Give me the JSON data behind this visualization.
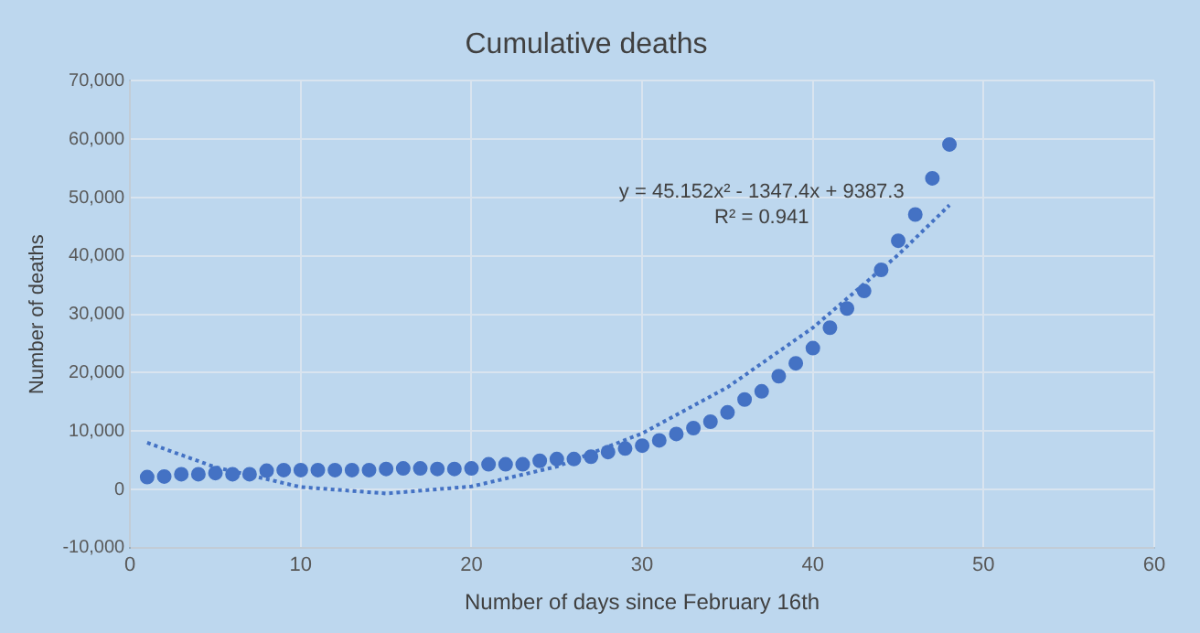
{
  "chart_data": {
    "type": "scatter",
    "title": "Cumulative deaths",
    "xlabel": "Number of days since February 16th",
    "ylabel": "Number of deaths",
    "xlim": [
      0,
      60
    ],
    "xticks": [
      0,
      10,
      20,
      30,
      40,
      50,
      60
    ],
    "ylim": [
      -10000,
      70000
    ],
    "yticks": [
      {
        "value": -10000,
        "label": "-10,000"
      },
      {
        "value": 0,
        "label": "0"
      },
      {
        "value": 10000,
        "label": "10,000"
      },
      {
        "value": 20000,
        "label": "20,000"
      },
      {
        "value": 30000,
        "label": "30,000"
      },
      {
        "value": 40000,
        "label": "40,000"
      },
      {
        "value": 50000,
        "label": "50,000"
      },
      {
        "value": 60000,
        "label": "60,000"
      },
      {
        "value": 70000,
        "label": "70,000"
      }
    ],
    "grid": true,
    "legend": false,
    "marker": "circle",
    "annotations": [
      "y = 45.152x² - 1347.4x + 9387.3",
      "R² = 0.941"
    ],
    "series": [
      {
        "color": "#4472c4",
        "x": [
          1,
          2,
          3,
          4,
          5,
          6,
          7,
          8,
          9,
          10,
          11,
          12,
          13,
          14,
          15,
          16,
          17,
          18,
          19,
          20,
          21,
          22,
          23,
          24,
          25,
          26,
          27,
          28,
          29,
          30,
          31,
          32,
          33,
          34,
          35,
          36,
          37,
          38,
          39,
          40,
          41,
          42,
          43,
          44,
          45,
          46,
          47,
          48
        ],
        "values": [
          2100,
          2200,
          2600,
          2600,
          2800,
          2600,
          2600,
          3200,
          3300,
          3300,
          3300,
          3300,
          3300,
          3300,
          3500,
          3600,
          3600,
          3500,
          3500,
          3600,
          4300,
          4300,
          4300,
          4900,
          5200,
          5200,
          5600,
          6400,
          7000,
          7500,
          8400,
          9500,
          10500,
          11600,
          13200,
          15400,
          16800,
          19400,
          21600,
          24200,
          27700,
          31000,
          34000,
          37600,
          42600,
          47100,
          53300,
          59100
        ]
      },
      {
        "type": "line",
        "color": "#4472c4",
        "line_style": "dotted",
        "marker": "none",
        "x": [
          1,
          5,
          10,
          15,
          20,
          25,
          30,
          35,
          40,
          45,
          48
        ],
        "values": [
          8000,
          3800,
          400,
          -700,
          500,
          3900,
          9600,
          17500,
          27700,
          40200,
          48700
        ]
      }
    ]
  }
}
